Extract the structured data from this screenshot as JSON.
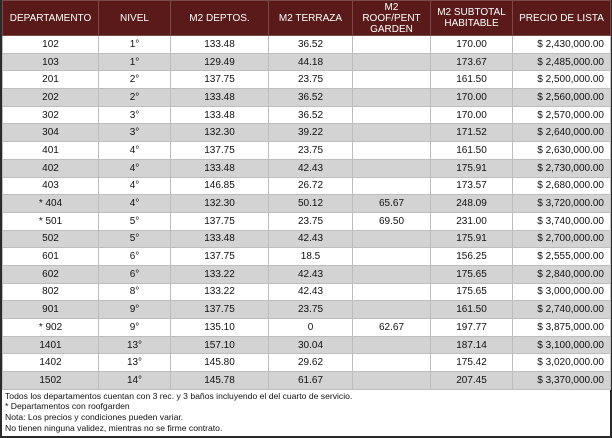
{
  "table": {
    "headers": [
      "DEPARTAMENTO",
      "NIVEL",
      "M2 DEPTOS.",
      "M2 TERRAZA",
      "M2 ROOF/PENT GARDEN",
      "M2 SUBTOTAL HABITABLE",
      "PRECIO DE LISTA"
    ],
    "rows": [
      [
        "102",
        "1°",
        "133.48",
        "36.52",
        null,
        "170.00",
        "$ 2,430,000.00"
      ],
      [
        "103",
        "1°",
        "129.49",
        "44.18",
        null,
        "173.67",
        "$ 2,485,000.00"
      ],
      [
        "201",
        "2°",
        "137.75",
        "23.75",
        null,
        "161.50",
        "$ 2,500,000.00"
      ],
      [
        "202",
        "2°",
        "133.48",
        "36.52",
        null,
        "170.00",
        "$ 2,560,000.00"
      ],
      [
        "302",
        "3°",
        "133.48",
        "36.52",
        null,
        "170.00",
        "$ 2,570,000.00"
      ],
      [
        "304",
        "3°",
        "132.30",
        "39.22",
        null,
        "171.52",
        "$ 2,640,000.00"
      ],
      [
        "401",
        "4°",
        "137.75",
        "23.75",
        null,
        "161.50",
        "$ 2,630,000.00"
      ],
      [
        "402",
        "4°",
        "133.48",
        "42.43",
        null,
        "175.91",
        "$ 2,730,000.00"
      ],
      [
        "403",
        "4°",
        "146.85",
        "26.72",
        null,
        "173.57",
        "$ 2,680,000.00"
      ],
      [
        "* 404",
        "4°",
        "132.30",
        "50.12",
        "65.67",
        "248.09",
        "$ 3,720,000.00"
      ],
      [
        "* 501",
        "5°",
        "137.75",
        "23.75",
        "69.50",
        "231.00",
        "$ 3,740,000.00"
      ],
      [
        "502",
        "5°",
        "133.48",
        "42.43",
        null,
        "175.91",
        "$ 2,700,000.00"
      ],
      [
        "601",
        "6°",
        "137.75",
        "18.5",
        null,
        "156.25",
        "$ 2,555,000.00"
      ],
      [
        "602",
        "6°",
        "133.22",
        "42.43",
        null,
        "175.65",
        "$ 2,840,000.00"
      ],
      [
        "802",
        "8°",
        "133.22",
        "42.43",
        null,
        "175.65",
        "$ 3,000,000.00"
      ],
      [
        "901",
        "9°",
        "137.75",
        "23.75",
        null,
        "161.50",
        "$ 2,740,000.00"
      ],
      [
        "* 902",
        "9°",
        "135.10",
        "0",
        "62.67",
        "197.77",
        "$ 3,875,000.00"
      ],
      [
        "1401",
        "13°",
        "157.10",
        "30.04",
        null,
        "187.14",
        "$ 3,100,000.00"
      ],
      [
        "1402",
        "13°",
        "145.80",
        "29.62",
        null,
        "175.42",
        "$ 3,020,000.00"
      ],
      [
        "1502",
        "14°",
        "145.78",
        "61.67",
        null,
        "207.45",
        "$ 3,370,000.00"
      ]
    ]
  },
  "notes": [
    "Todos los departamentos cuentan con 3 rec.  y 3 baños incluyendo el del cuarto de servicio.",
    "* Departamentos con roofgarden",
    "Nota: Los precios y condiciones pueden variar.",
    "No tienen ninguna validez, mientras no se firme contrato."
  ]
}
